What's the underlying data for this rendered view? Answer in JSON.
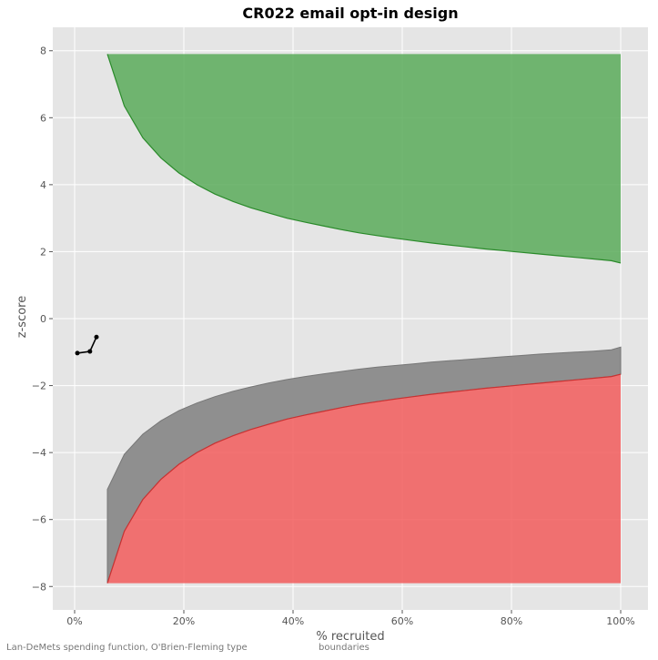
{
  "chart_data": {
    "type": "area",
    "title": "CR022 email opt-in design",
    "xlabel": "% recruited",
    "ylabel": "z-score",
    "xlim": [
      -4,
      105
    ],
    "ylim": [
      -8.7,
      8.7
    ],
    "x_ticks": [
      "0%",
      "20%",
      "40%",
      "60%",
      "80%",
      "100%"
    ],
    "x_tick_values": [
      0,
      20,
      40,
      60,
      80,
      100
    ],
    "y_ticks": [
      "−8",
      "−6",
      "−4",
      "−2",
      "0",
      "2",
      "4",
      "6",
      "8"
    ],
    "y_tick_values": [
      -8,
      -6,
      -4,
      -2,
      0,
      2,
      4,
      6,
      8
    ],
    "grid": true,
    "colors": {
      "efficacy_fill": "#5aab5a",
      "efficacy_line": "#2a8a2a",
      "futility_fill": "#8f8f8f",
      "harm_fill": "#f25c5c",
      "harm_line": "#c83232",
      "observed": "#000000",
      "panel_bg": "#e5e5e5"
    },
    "boundary_x": [
      6,
      9.1,
      12.5,
      15.8,
      19.1,
      22.4,
      25.7,
      29,
      32.3,
      35.6,
      38.9,
      42.2,
      45.5,
      48.8,
      52.1,
      55.4,
      58.7,
      62,
      65.3,
      68.6,
      71.9,
      75.2,
      78.5,
      81.8,
      85.1,
      88.4,
      91.7,
      95,
      98.3,
      100
    ],
    "upper_boundary": [
      7.9,
      6.35,
      5.4,
      4.8,
      4.35,
      4.0,
      3.72,
      3.5,
      3.31,
      3.15,
      3.0,
      2.88,
      2.77,
      2.66,
      2.56,
      2.48,
      2.4,
      2.33,
      2.26,
      2.2,
      2.14,
      2.08,
      2.03,
      1.98,
      1.93,
      1.88,
      1.83,
      1.78,
      1.73,
      1.66
    ],
    "lower_boundary": [
      -7.9,
      -6.35,
      -5.4,
      -4.8,
      -4.35,
      -4.0,
      -3.72,
      -3.5,
      -3.31,
      -3.15,
      -3.0,
      -2.88,
      -2.77,
      -2.66,
      -2.56,
      -2.48,
      -2.4,
      -2.33,
      -2.26,
      -2.2,
      -2.14,
      -2.08,
      -2.03,
      -1.98,
      -1.93,
      -1.88,
      -1.83,
      -1.78,
      -1.73,
      -1.66
    ],
    "futility_boundary": [
      -5.1,
      -4.05,
      -3.45,
      -3.05,
      -2.75,
      -2.52,
      -2.33,
      -2.17,
      -2.04,
      -1.92,
      -1.82,
      -1.73,
      -1.65,
      -1.58,
      -1.51,
      -1.45,
      -1.4,
      -1.35,
      -1.3,
      -1.26,
      -1.22,
      -1.18,
      -1.14,
      -1.1,
      -1.06,
      -1.03,
      -1.0,
      -0.97,
      -0.93,
      -0.85
    ],
    "band_limit": 7.9,
    "observed": {
      "x": [
        0.5,
        2.8,
        4.0
      ],
      "y": [
        -1.03,
        -0.98,
        -0.55
      ]
    }
  },
  "footnote": {
    "part1": "Lan-DeMets spending function, O'Brien-Fleming type",
    "part2": "boundaries"
  }
}
